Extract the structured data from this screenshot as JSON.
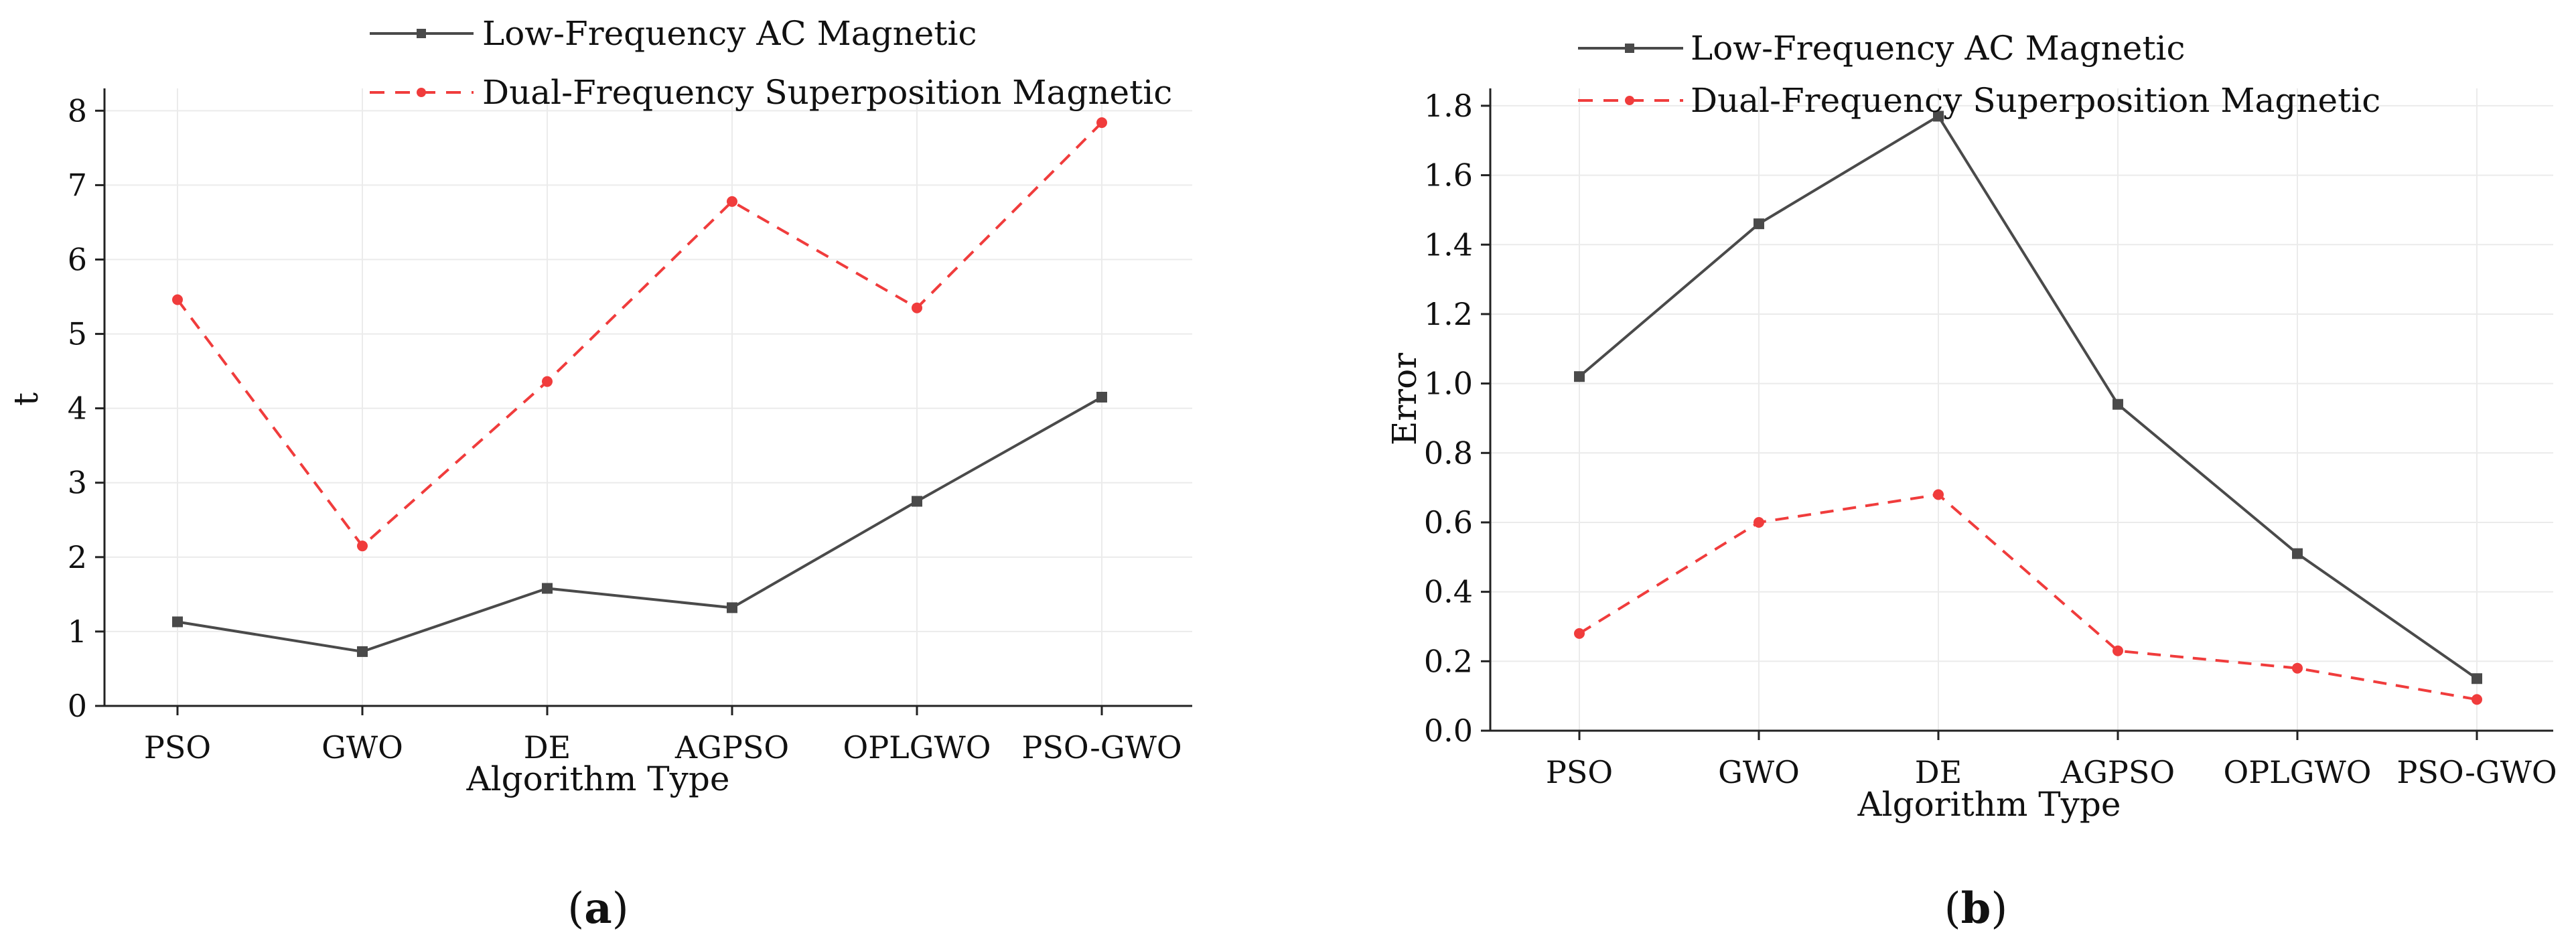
{
  "chart_data": [
    {
      "id": "a",
      "type": "line",
      "caption": "(a)",
      "caption_letter": "a",
      "xlabel": "Algorithm Type",
      "ylabel": "t",
      "categories": [
        "PSO",
        "GWO",
        "DE",
        "AGPSO",
        "OPLGWO",
        "PSO-GWO"
      ],
      "ylim": [
        0,
        8.3
      ],
      "yticks": [
        "0",
        "1",
        "2",
        "3",
        "4",
        "5",
        "6",
        "7",
        "8"
      ],
      "ytick_values": [
        0,
        1,
        2,
        3,
        4,
        5,
        6,
        7,
        8
      ],
      "grid": true,
      "legend_position": "top",
      "series": [
        {
          "name": "Low-Frequency AC Magnetic",
          "color": "#4a4a4a",
          "dash": "solid",
          "marker": "square",
          "values": [
            1.13,
            0.73,
            1.58,
            1.32,
            2.75,
            4.15
          ]
        },
        {
          "name": "Dual-Frequency Superposition Magnetic",
          "color": "#f03c3c",
          "dash": "dashed",
          "marker": "circle",
          "values": [
            5.46,
            2.15,
            4.36,
            6.78,
            5.35,
            7.84
          ]
        }
      ]
    },
    {
      "id": "b",
      "type": "line",
      "caption": "(b)",
      "caption_letter": "b",
      "xlabel": "Algorithm Type",
      "ylabel": "Error",
      "categories": [
        "PSO",
        "GWO",
        "DE",
        "AGPSO",
        "OPLGWO",
        "PSO-GWO"
      ],
      "ylim": [
        0,
        1.85
      ],
      "yticks": [
        "0.0",
        "0.2",
        "0.4",
        "0.6",
        "0.8",
        "1.0",
        "1.2",
        "1.4",
        "1.6",
        "1.8"
      ],
      "ytick_values": [
        0,
        0.2,
        0.4,
        0.6,
        0.8,
        1.0,
        1.2,
        1.4,
        1.6,
        1.8
      ],
      "grid": true,
      "legend_position": "top",
      "series": [
        {
          "name": "Low-Frequency AC Magnetic",
          "color": "#4a4a4a",
          "dash": "solid",
          "marker": "square",
          "values": [
            1.02,
            1.46,
            1.77,
            0.94,
            0.51,
            0.15
          ]
        },
        {
          "name": "Dual-Frequency Superposition Magnetic",
          "color": "#f03c3c",
          "dash": "dashed",
          "marker": "circle",
          "values": [
            0.28,
            0.6,
            0.68,
            0.23,
            0.18,
            0.09
          ]
        }
      ]
    }
  ]
}
